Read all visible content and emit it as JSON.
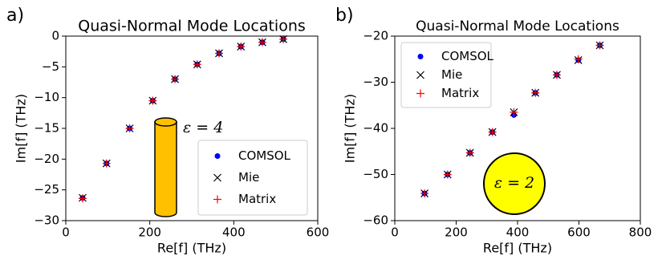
{
  "chart_data": [
    {
      "type": "scatter",
      "panel_label": "a)",
      "title": "Quasi-Normal Mode Locations",
      "xlabel": "Re[f] (THz)",
      "ylabel": "Im[f] (THz)",
      "xlim": [
        0,
        600
      ],
      "ylim": [
        -30,
        0
      ],
      "xticks": [
        0,
        200,
        400,
        600
      ],
      "yticks": [
        {
          "value": 0,
          "label": "0"
        },
        {
          "value": -5,
          "label": "−5"
        },
        {
          "value": -10,
          "label": "−10"
        },
        {
          "value": -15,
          "label": "−15"
        },
        {
          "value": -20,
          "label": "−20"
        },
        {
          "value": -25,
          "label": "−25"
        },
        {
          "value": -30,
          "label": "−30"
        }
      ],
      "x": [
        40,
        97,
        152,
        207,
        260,
        313,
        365,
        417,
        468,
        518
      ],
      "series": [
        {
          "name": "COMSOL",
          "color": "#0000ff",
          "marker": "o",
          "values": [
            -26.3,
            -20.7,
            -15.0,
            -10.5,
            -7.0,
            -4.6,
            -2.8,
            -1.7,
            -1.0,
            -0.5
          ]
        },
        {
          "name": "Mie",
          "color": "#000000",
          "marker": "x",
          "values": [
            -26.3,
            -20.7,
            -15.0,
            -10.5,
            -7.0,
            -4.6,
            -2.8,
            -1.7,
            -1.0,
            -0.5
          ]
        },
        {
          "name": "Matrix",
          "color": "#ff0000",
          "marker": "+",
          "values": [
            -26.4,
            -20.7,
            -15.0,
            -10.5,
            -7.0,
            -4.6,
            -2.8,
            -1.7,
            -1.0,
            -0.5
          ]
        }
      ],
      "legend": "lower right",
      "annotation": "ε = 4"
    },
    {
      "type": "scatter",
      "panel_label": "b)",
      "title": "Quasi-Normal Mode Locations",
      "xlabel": "Re[f] (THz)",
      "ylabel": "Im[f] (THz)",
      "xlim": [
        0,
        800
      ],
      "ylim": [
        -60,
        -20
      ],
      "xticks": [
        0,
        200,
        400,
        600,
        800
      ],
      "yticks": [
        {
          "value": -20,
          "label": "−20"
        },
        {
          "value": -30,
          "label": "−30"
        },
        {
          "value": -40,
          "label": "−40"
        },
        {
          "value": -50,
          "label": "−50"
        },
        {
          "value": -60,
          "label": "−60"
        }
      ],
      "x": [
        97,
        172,
        245,
        318,
        388,
        458,
        528,
        598,
        668
      ],
      "series": [
        {
          "name": "COMSOL",
          "color": "#0000ff",
          "marker": "o",
          "values": [
            -54.1,
            -50.0,
            -45.3,
            -40.8,
            -37.1,
            -32.3,
            -28.4,
            -25.2,
            -22.0
          ]
        },
        {
          "name": "Mie",
          "color": "#000000",
          "marker": "x",
          "values": [
            -54.1,
            -50.0,
            -45.3,
            -40.8,
            -36.5,
            -32.3,
            -28.4,
            -25.2,
            -22.0
          ]
        },
        {
          "name": "Matrix",
          "color": "#ff0000",
          "marker": "+",
          "values": [
            -54.1,
            -50.0,
            -45.3,
            -40.8,
            -36.5,
            -32.3,
            -28.4,
            -25.0,
            -22.0
          ]
        }
      ],
      "legend": "upper left",
      "annotation": "ε = 2"
    }
  ]
}
